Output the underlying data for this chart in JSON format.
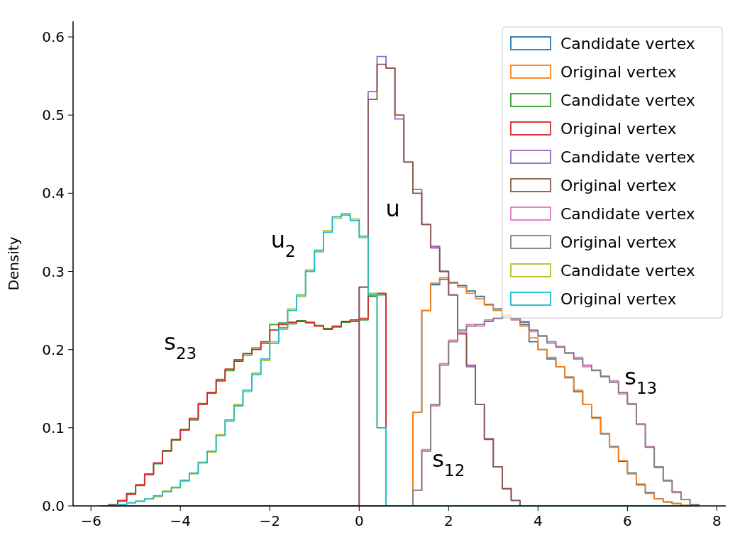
{
  "chart_data": {
    "type": "histogram",
    "ylabel": "Density",
    "xlim": [
      -6.4,
      8.2
    ],
    "ylim": [
      0,
      0.62
    ],
    "xticks": [
      {
        "value": -6,
        "label": "−6"
      },
      {
        "value": -4,
        "label": "−4"
      },
      {
        "value": -2,
        "label": "−2"
      },
      0,
      2,
      4,
      6,
      8
    ],
    "yticks": [
      {
        "value": 0,
        "label": "0.0"
      },
      0.1,
      0.2,
      0.3,
      0.4,
      0.5,
      0.6
    ],
    "legend": "top right",
    "bins": [
      -5.8,
      -5.6,
      -5.4,
      -5.2,
      -5.0,
      -4.8,
      -4.6,
      -4.4,
      -4.2,
      -4.0,
      -3.8,
      -3.6,
      -3.4,
      -3.2,
      -3.0,
      -2.8,
      -2.6,
      -2.4,
      -2.2,
      -2.0,
      -1.8,
      -1.6,
      -1.4,
      -1.2,
      -1.0,
      -0.8,
      -0.6,
      -0.4,
      -0.2,
      0.0,
      0.2,
      0.4,
      0.6,
      0.8,
      1.0,
      1.2,
      1.4,
      1.6,
      1.8,
      2.0,
      2.2,
      2.4,
      2.6,
      2.8,
      3.0,
      3.2,
      3.4,
      3.6,
      3.8,
      4.0,
      4.2,
      4.4,
      4.6,
      4.8,
      5.0,
      5.2,
      5.4,
      5.6,
      5.8,
      6.0,
      6.2,
      6.4,
      6.6,
      6.8,
      7.0,
      7.2,
      7.4,
      7.6
    ],
    "series": [
      {
        "name": "Candidate vertex",
        "color": "#1f77b4",
        "values": [
          0,
          0,
          0,
          0,
          0,
          0,
          0,
          0,
          0,
          0,
          0,
          0,
          0,
          0,
          0,
          0,
          0,
          0,
          0,
          0,
          0,
          0,
          0,
          0,
          0,
          0,
          0,
          0,
          0,
          0,
          0,
          0,
          0,
          0,
          0,
          0.12,
          0.25,
          0.283,
          0.29,
          0.286,
          0.282,
          0.275,
          0.268,
          0.258,
          0.252,
          0.244,
          0.24,
          0.232,
          0.21,
          0.2,
          0.188,
          0.178,
          0.164,
          0.146,
          0.13,
          0.113,
          0.092,
          0.076,
          0.057,
          0.042,
          0.027,
          0.017,
          0.009,
          0.005,
          0.003,
          0.001,
          0
        ]
      },
      {
        "name": "Original vertex",
        "color": "#ff7f0e",
        "values": [
          0,
          0,
          0,
          0,
          0,
          0,
          0,
          0,
          0,
          0,
          0,
          0,
          0,
          0,
          0,
          0,
          0,
          0,
          0,
          0,
          0,
          0,
          0,
          0,
          0,
          0,
          0,
          0,
          0,
          0,
          0,
          0,
          0,
          0,
          0,
          0.12,
          0.25,
          0.285,
          0.292,
          0.285,
          0.28,
          0.272,
          0.265,
          0.257,
          0.25,
          0.245,
          0.238,
          0.23,
          0.215,
          0.2,
          0.19,
          0.178,
          0.165,
          0.148,
          0.13,
          0.112,
          0.093,
          0.075,
          0.058,
          0.041,
          0.028,
          0.016,
          0.009,
          0.005,
          0.003,
          0.001,
          0
        ]
      },
      {
        "name": "Candidate vertex",
        "color": "#2ca02c",
        "values": [
          0.0,
          0.002,
          0.006,
          0.016,
          0.026,
          0.041,
          0.054,
          0.071,
          0.084,
          0.098,
          0.11,
          0.131,
          0.144,
          0.162,
          0.173,
          0.187,
          0.193,
          0.202,
          0.208,
          0.232,
          0.234,
          0.233,
          0.237,
          0.234,
          0.231,
          0.227,
          0.229,
          0.235,
          0.236,
          0.238,
          0.268,
          0.27,
          0,
          0,
          0,
          0,
          0,
          0,
          0,
          0,
          0,
          0,
          0,
          0,
          0,
          0,
          0,
          0,
          0,
          0,
          0,
          0,
          0,
          0,
          0,
          0,
          0,
          0,
          0,
          0,
          0,
          0,
          0,
          0,
          0,
          0,
          0
        ]
      },
      {
        "name": "Original vertex",
        "color": "#d62728",
        "values": [
          0.0,
          0.002,
          0.007,
          0.015,
          0.027,
          0.04,
          0.055,
          0.07,
          0.085,
          0.097,
          0.112,
          0.13,
          0.145,
          0.16,
          0.175,
          0.185,
          0.195,
          0.2,
          0.21,
          0.225,
          0.232,
          0.235,
          0.236,
          0.235,
          0.23,
          0.226,
          0.23,
          0.236,
          0.238,
          0.24,
          0.27,
          0.272,
          0,
          0,
          0,
          0,
          0,
          0,
          0,
          0,
          0,
          0,
          0,
          0,
          0,
          0,
          0,
          0,
          0,
          0,
          0,
          0,
          0,
          0,
          0,
          0,
          0,
          0,
          0,
          0,
          0,
          0,
          0,
          0,
          0,
          0,
          0
        ]
      },
      {
        "name": "Candidate vertex",
        "color": "#9467bd",
        "values": [
          0,
          0,
          0,
          0,
          0,
          0,
          0,
          0,
          0,
          0,
          0,
          0,
          0,
          0,
          0,
          0,
          0,
          0,
          0,
          0,
          0,
          0,
          0,
          0,
          0,
          0,
          0,
          0,
          0,
          0.28,
          0.53,
          0.575,
          0.56,
          0.495,
          0.44,
          0.405,
          0.36,
          0.332,
          0.3,
          0.27,
          0.222,
          0.178,
          0.13,
          0.086,
          0.05,
          0.022,
          0.007,
          0,
          0,
          0,
          0,
          0,
          0,
          0,
          0,
          0,
          0,
          0,
          0,
          0,
          0,
          0,
          0,
          0,
          0,
          0,
          0
        ]
      },
      {
        "name": "Original vertex",
        "color": "#8c564b",
        "values": [
          0,
          0,
          0,
          0,
          0,
          0,
          0,
          0,
          0,
          0,
          0,
          0,
          0,
          0,
          0,
          0,
          0,
          0,
          0,
          0,
          0,
          0,
          0,
          0,
          0,
          0,
          0,
          0,
          0,
          0.28,
          0.52,
          0.565,
          0.56,
          0.5,
          0.44,
          0.4,
          0.36,
          0.33,
          0.3,
          0.27,
          0.22,
          0.18,
          0.13,
          0.085,
          0.05,
          0.022,
          0.007,
          0,
          0,
          0,
          0,
          0,
          0,
          0,
          0,
          0,
          0,
          0,
          0,
          0,
          0,
          0,
          0,
          0,
          0,
          0,
          0
        ]
      },
      {
        "name": "Candidate vertex",
        "color": "#e377c2",
        "values": [
          0,
          0,
          0,
          0,
          0,
          0,
          0,
          0,
          0,
          0,
          0,
          0,
          0,
          0,
          0,
          0,
          0,
          0,
          0,
          0,
          0,
          0,
          0,
          0,
          0,
          0,
          0,
          0,
          0,
          0,
          0,
          0,
          0,
          0,
          0,
          0.02,
          0.072,
          0.128,
          0.182,
          0.212,
          0.222,
          0.232,
          0.23,
          0.238,
          0.24,
          0.243,
          0.238,
          0.236,
          0.223,
          0.218,
          0.208,
          0.204,
          0.195,
          0.19,
          0.178,
          0.174,
          0.165,
          0.16,
          0.143,
          0.131,
          0.104,
          0.076,
          0.049,
          0.033,
          0.017,
          0.008,
          0.002
        ]
      },
      {
        "name": "Original vertex",
        "color": "#7f7f7f",
        "values": [
          0,
          0,
          0,
          0,
          0,
          0,
          0,
          0,
          0,
          0,
          0,
          0,
          0,
          0,
          0,
          0,
          0,
          0,
          0,
          0,
          0,
          0,
          0,
          0,
          0,
          0,
          0,
          0,
          0,
          0,
          0,
          0,
          0,
          0,
          0,
          0.02,
          0.07,
          0.13,
          0.18,
          0.21,
          0.225,
          0.23,
          0.232,
          0.236,
          0.24,
          0.242,
          0.24,
          0.235,
          0.225,
          0.217,
          0.21,
          0.203,
          0.196,
          0.188,
          0.18,
          0.173,
          0.166,
          0.158,
          0.145,
          0.13,
          0.105,
          0.075,
          0.05,
          0.032,
          0.018,
          0.008,
          0.002
        ]
      },
      {
        "name": "Candidate vertex",
        "color": "#bcbd22",
        "values": [
          0.0,
          0.001,
          0.002,
          0.004,
          0.006,
          0.009,
          0.012,
          0.019,
          0.023,
          0.033,
          0.041,
          0.056,
          0.069,
          0.091,
          0.108,
          0.13,
          0.146,
          0.17,
          0.186,
          0.21,
          0.226,
          0.252,
          0.268,
          0.302,
          0.325,
          0.352,
          0.368,
          0.374,
          0.367,
          0.343,
          0.272,
          0.1,
          0,
          0,
          0,
          0,
          0,
          0,
          0,
          0,
          0,
          0,
          0,
          0,
          0,
          0,
          0,
          0,
          0,
          0,
          0,
          0,
          0,
          0,
          0,
          0,
          0,
          0,
          0,
          0,
          0,
          0,
          0,
          0,
          0,
          0,
          0
        ]
      },
      {
        "name": "Original vertex",
        "color": "#17becf",
        "values": [
          0.0,
          0.001,
          0.002,
          0.004,
          0.006,
          0.009,
          0.013,
          0.018,
          0.024,
          0.032,
          0.042,
          0.055,
          0.07,
          0.09,
          0.11,
          0.128,
          0.148,
          0.168,
          0.188,
          0.208,
          0.228,
          0.25,
          0.27,
          0.3,
          0.327,
          0.35,
          0.37,
          0.372,
          0.365,
          0.345,
          0.27,
          0.1,
          0,
          0,
          0,
          0,
          0,
          0,
          0,
          0,
          0,
          0,
          0,
          0,
          0,
          0,
          0,
          0,
          0,
          0,
          0,
          0,
          0,
          0,
          0,
          0,
          0,
          0,
          0,
          0,
          0,
          0,
          0,
          0,
          0,
          0,
          0
        ]
      }
    ],
    "annotations": [
      "u",
      "u$_{2}$",
      "s$_{23}$",
      "s$_{13}$",
      "s$_{12}$"
    ]
  }
}
